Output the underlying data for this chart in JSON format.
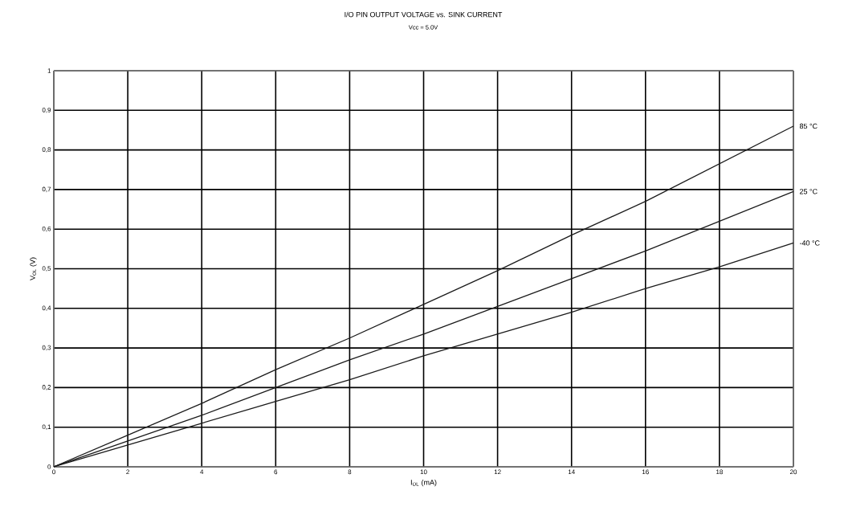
{
  "chart_data": {
    "type": "line",
    "title": "I/O PIN OUTPUT VOLTAGE vs. SINK CURRENT",
    "subtitle": "Vcc = 5.0V",
    "xlabel": "I$_{OL}$ (mA)",
    "ylabel": "V$_{OL}$ (V)",
    "x": [
      0,
      2,
      4,
      6,
      8,
      10,
      12,
      14,
      16,
      18,
      20
    ],
    "series": [
      {
        "name": "85 °C",
        "color": "#1a1a1a",
        "values": [
          0,
          0.08,
          0.16,
          0.245,
          0.325,
          0.41,
          0.495,
          0.585,
          0.67,
          0.765,
          0.86
        ]
      },
      {
        "name": "25 °C",
        "color": "#1a1a1a",
        "values": [
          0,
          0.065,
          0.13,
          0.2,
          0.27,
          0.335,
          0.405,
          0.475,
          0.545,
          0.62,
          0.695
        ]
      },
      {
        "name": "-40 °C",
        "color": "#1a1a1a",
        "values": [
          0,
          0.055,
          0.11,
          0.165,
          0.22,
          0.28,
          0.335,
          0.39,
          0.45,
          0.505,
          0.565
        ]
      }
    ],
    "xlim": [
      0,
      20
    ],
    "ylim": [
      0,
      1
    ],
    "xticks": [
      0,
      2,
      4,
      6,
      8,
      10,
      12,
      14,
      16,
      18,
      20
    ],
    "yticks": [
      0,
      {
        "value": 0.1,
        "label": "0,1"
      },
      {
        "value": 0.2,
        "label": "0,2"
      },
      {
        "value": 0.3,
        "label": "0,3"
      },
      {
        "value": 0.4,
        "label": "0,4"
      },
      {
        "value": 0.5,
        "label": "0,5"
      },
      {
        "value": 0.6,
        "label": "0,6"
      },
      {
        "value": 0.7,
        "label": "0,7"
      },
      {
        "value": 0.8,
        "label": "0,8"
      },
      {
        "value": 0.9,
        "label": "0,9"
      },
      1
    ],
    "grid": true,
    "marker": "none",
    "line_style": "solid"
  }
}
